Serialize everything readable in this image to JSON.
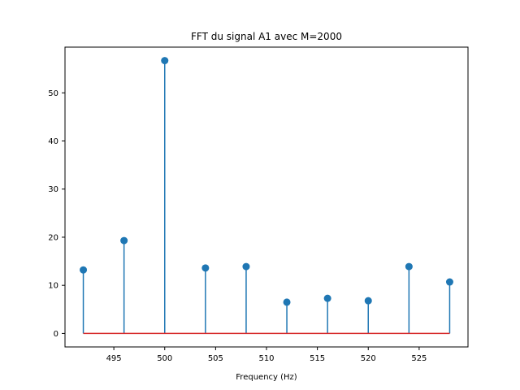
{
  "chart_data": {
    "type": "stem",
    "title": "FFT du signal A1 avec M=2000",
    "xlabel": "Frequency (Hz)",
    "ylabel": "",
    "xlim": [
      490.2,
      529.8
    ],
    "ylim": [
      -2.8,
      59.5
    ],
    "xticks": [
      495,
      500,
      505,
      510,
      515,
      520,
      525
    ],
    "yticks": [
      0,
      10,
      20,
      30,
      40,
      50
    ],
    "grid": false,
    "baseline": 0,
    "series": [
      {
        "x": [
          492,
          496,
          500,
          504,
          508,
          512,
          516,
          520,
          524,
          528
        ],
        "y": [
          13.2,
          19.3,
          56.7,
          13.6,
          13.9,
          6.5,
          7.3,
          6.8,
          13.9,
          10.7
        ]
      }
    ],
    "colors": {
      "stem": "#1f77b4",
      "baseline": "#d62728",
      "axis": "#000000"
    }
  }
}
